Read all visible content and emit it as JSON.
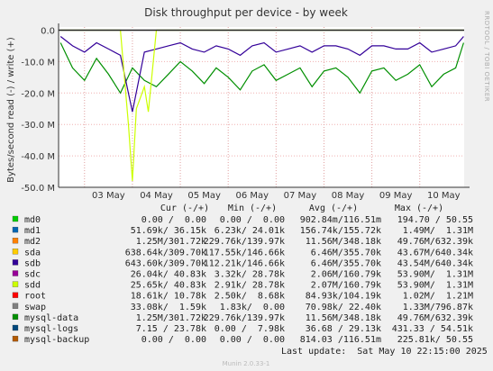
{
  "chart_data": {
    "type": "line",
    "title": "Disk throughput per device - by week",
    "ylabel": "Bytes/second read (-) / write (+)",
    "side_label": "RRDTOOL / TOBI OETIKER",
    "ylim": [
      -50000000,
      1000000
    ],
    "yticks": [
      0,
      -10000000,
      -20000000,
      -30000000,
      -40000000,
      -50000000
    ],
    "ytick_labels": [
      "0.0",
      "-10.0 M",
      "-20.0 M",
      "-30.0 M",
      "-40.0 M",
      "-50.0 M"
    ],
    "xlim": [
      "2025-05-02 11:00",
      "2025-05-10 22:15"
    ],
    "xticks": [
      "2025-05-03",
      "2025-05-04",
      "2025-05-05",
      "2025-05-06",
      "2025-05-07",
      "2025-05-08",
      "2025-05-09",
      "2025-05-10"
    ],
    "xtick_labels": [
      "03 May",
      "04 May",
      "05 May",
      "06 May",
      "07 May",
      "08 May",
      "09 May",
      "10 May"
    ],
    "grid": true,
    "series": [
      {
        "name": "mysql-data",
        "color": "#008f00",
        "x": [
          "2025-05-02 12:00",
          "2025-05-02 18:00",
          "2025-05-03 00:00",
          "2025-05-03 06:00",
          "2025-05-03 12:00",
          "2025-05-03 18:00",
          "2025-05-04 00:00",
          "2025-05-04 06:00",
          "2025-05-04 12:00",
          "2025-05-04 18:00",
          "2025-05-05 00:00",
          "2025-05-05 06:00",
          "2025-05-05 12:00",
          "2025-05-05 18:00",
          "2025-05-06 00:00",
          "2025-05-06 06:00",
          "2025-05-06 12:00",
          "2025-05-06 18:00",
          "2025-05-07 00:00",
          "2025-05-07 06:00",
          "2025-05-07 12:00",
          "2025-05-07 18:00",
          "2025-05-08 00:00",
          "2025-05-08 06:00",
          "2025-05-08 12:00",
          "2025-05-08 18:00",
          "2025-05-09 00:00",
          "2025-05-09 06:00",
          "2025-05-09 12:00",
          "2025-05-09 18:00",
          "2025-05-10 00:00",
          "2025-05-10 06:00",
          "2025-05-10 12:00",
          "2025-05-10 18:00",
          "2025-05-10 22:00"
        ],
        "values": [
          -4000000,
          -12000000,
          -16000000,
          -9000000,
          -14000000,
          -20000000,
          -12000000,
          -16000000,
          -18000000,
          -14000000,
          -10000000,
          -13000000,
          -17000000,
          -12000000,
          -15000000,
          -19000000,
          -13000000,
          -11000000,
          -16000000,
          -14000000,
          -12000000,
          -18000000,
          -13000000,
          -12000000,
          -15000000,
          -20000000,
          -13000000,
          -12000000,
          -16000000,
          -14000000,
          -11000000,
          -18000000,
          -14000000,
          -12000000,
          -4000000
        ]
      },
      {
        "name": "sdb",
        "color": "#330099",
        "x": [
          "2025-05-02 12:00",
          "2025-05-02 18:00",
          "2025-05-03 00:00",
          "2025-05-03 06:00",
          "2025-05-03 12:00",
          "2025-05-03 18:00",
          "2025-05-04 00:00",
          "2025-05-04 06:00",
          "2025-05-04 12:00",
          "2025-05-04 18:00",
          "2025-05-05 00:00",
          "2025-05-05 06:00",
          "2025-05-05 12:00",
          "2025-05-05 18:00",
          "2025-05-06 00:00",
          "2025-05-06 06:00",
          "2025-05-06 12:00",
          "2025-05-06 18:00",
          "2025-05-07 00:00",
          "2025-05-07 06:00",
          "2025-05-07 12:00",
          "2025-05-07 18:00",
          "2025-05-08 00:00",
          "2025-05-08 06:00",
          "2025-05-08 12:00",
          "2025-05-08 18:00",
          "2025-05-09 00:00",
          "2025-05-09 06:00",
          "2025-05-09 12:00",
          "2025-05-09 18:00",
          "2025-05-10 00:00",
          "2025-05-10 06:00",
          "2025-05-10 12:00",
          "2025-05-10 18:00",
          "2025-05-10 22:00"
        ],
        "values": [
          -2000000,
          -5000000,
          -7000000,
          -4000000,
          -6000000,
          -8000000,
          -26000000,
          -7000000,
          -6000000,
          -5000000,
          -4000000,
          -6000000,
          -7000000,
          -5000000,
          -6000000,
          -8000000,
          -5000000,
          -4000000,
          -7000000,
          -6000000,
          -5000000,
          -7000000,
          -5000000,
          -5000000,
          -6000000,
          -8000000,
          -5000000,
          -5000000,
          -6000000,
          -6000000,
          -4000000,
          -7000000,
          -6000000,
          -5000000,
          -2000000
        ]
      },
      {
        "name": "sdd",
        "color": "#ccff00",
        "x": [
          "2025-05-02 12:00",
          "2025-05-03 12:00",
          "2025-05-03 18:00",
          "2025-05-03 22:00",
          "2025-05-04 00:00",
          "2025-05-04 02:00",
          "2025-05-04 06:00",
          "2025-05-04 08:00",
          "2025-05-04 12:00",
          "2025-05-05 00:00",
          "2025-05-06 00:00",
          "2025-05-07 00:00",
          "2025-05-08 00:00",
          "2025-05-09 00:00",
          "2025-05-10 00:00",
          "2025-05-10 22:00"
        ],
        "values": [
          0,
          0,
          0,
          -30000000,
          -48000000,
          -25000000,
          -18000000,
          -26000000,
          0,
          0,
          0,
          0,
          0,
          0,
          0,
          0
        ]
      }
    ],
    "legend_headers": [
      "Cur (-/+)",
      "Min (-/+)",
      "Avg (-/+)",
      "Max (-/+)"
    ],
    "legend": [
      {
        "name": "md0",
        "color": "#00cc00",
        "cur": "0.00 /  0.00",
        "min": "0.00 /  0.00",
        "avg": "902.84m/116.51m",
        "max": "194.70 / 50.55"
      },
      {
        "name": "md1",
        "color": "#0066b3",
        "cur": "51.69k/ 36.15k",
        "min": "6.23k/ 24.01k",
        "avg": "156.74k/155.72k",
        "max": "1.49M/  1.31M"
      },
      {
        "name": "md2",
        "color": "#ff8000",
        "cur": "1.25M/301.72k",
        "min": "229.76k/139.97k",
        "avg": "11.56M/348.18k",
        "max": "49.76M/632.39k"
      },
      {
        "name": "sda",
        "color": "#ffcc00",
        "cur": "638.64k/309.70k",
        "min": "117.55k/146.66k",
        "avg": "6.46M/355.70k",
        "max": "43.67M/640.34k"
      },
      {
        "name": "sdb",
        "color": "#330099",
        "cur": "643.60k/309.70k",
        "min": "112.21k/146.66k",
        "avg": "6.46M/355.70k",
        "max": "43.54M/640.34k"
      },
      {
        "name": "sdc",
        "color": "#990099",
        "cur": "26.04k/ 40.83k",
        "min": "3.32k/ 28.78k",
        "avg": "2.06M/160.79k",
        "max": "53.90M/  1.31M"
      },
      {
        "name": "sdd",
        "color": "#ccff00",
        "cur": "25.65k/ 40.83k",
        "min": "2.91k/ 28.78k",
        "avg": "2.07M/160.79k",
        "max": "53.90M/  1.31M"
      },
      {
        "name": "root",
        "color": "#ff0000",
        "cur": "18.61k/ 10.78k",
        "min": "2.50k/  8.68k",
        "avg": "84.93k/104.19k",
        "max": "1.02M/  1.21M"
      },
      {
        "name": "swap",
        "color": "#808080",
        "cur": "33.08k/  1.59k",
        "min": "1.83k/  0.00",
        "avg": "70.98k/ 22.40k",
        "max": "1.33M/796.87k"
      },
      {
        "name": "mysql-data",
        "color": "#008f00",
        "cur": "1.25M/301.72k",
        "min": "229.76k/139.97k",
        "avg": "11.56M/348.18k",
        "max": "49.76M/632.39k"
      },
      {
        "name": "mysql-logs",
        "color": "#00487d",
        "cur": "7.15 / 23.78k",
        "min": "0.00 /  7.98k",
        "avg": "36.68 / 29.13k",
        "max": "431.33 / 54.51k"
      },
      {
        "name": "mysql-backup",
        "color": "#b35a00",
        "cur": "0.00 /  0.00",
        "min": "0.00 /  0.00",
        "avg": "814.03 /116.51m",
        "max": "225.81k/ 50.55"
      }
    ],
    "last_update": "Last update:  Sat May 10 22:15:00 2025",
    "footer": "Munin 2.0.33-1"
  }
}
